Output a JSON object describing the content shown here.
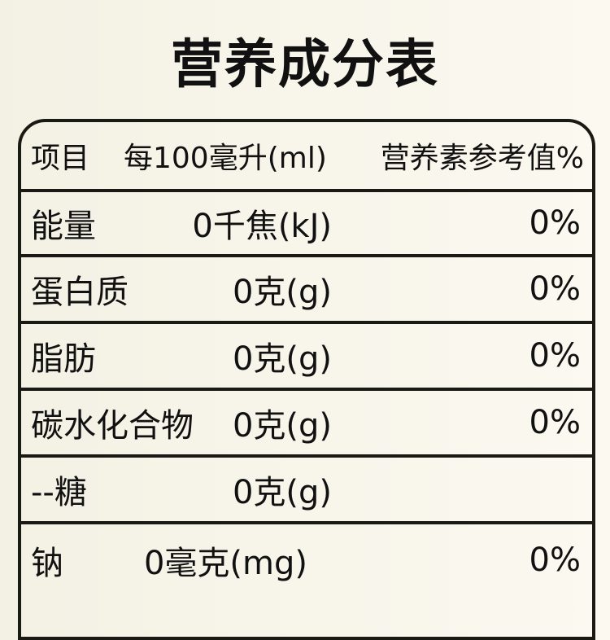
{
  "title": "营养成分表",
  "header": {
    "item": "项目",
    "per": "每100毫升(ml)",
    "nrv": "营养素参考值%"
  },
  "rows": [
    {
      "name": "能量",
      "amount": "0千焦(kJ)",
      "nrv": "0%"
    },
    {
      "name": "蛋白质",
      "amount": "0克(g)",
      "nrv": "0%"
    },
    {
      "name": "脂肪",
      "amount": "0克(g)",
      "nrv": "0%"
    },
    {
      "name": "碳水化合物",
      "amount": "0克(g)",
      "nrv": "0%"
    },
    {
      "name": "--糖",
      "amount": "0克(g)",
      "nrv": ""
    },
    {
      "name": "钠",
      "amount": "0毫克(mg)",
      "nrv": "0%"
    }
  ]
}
